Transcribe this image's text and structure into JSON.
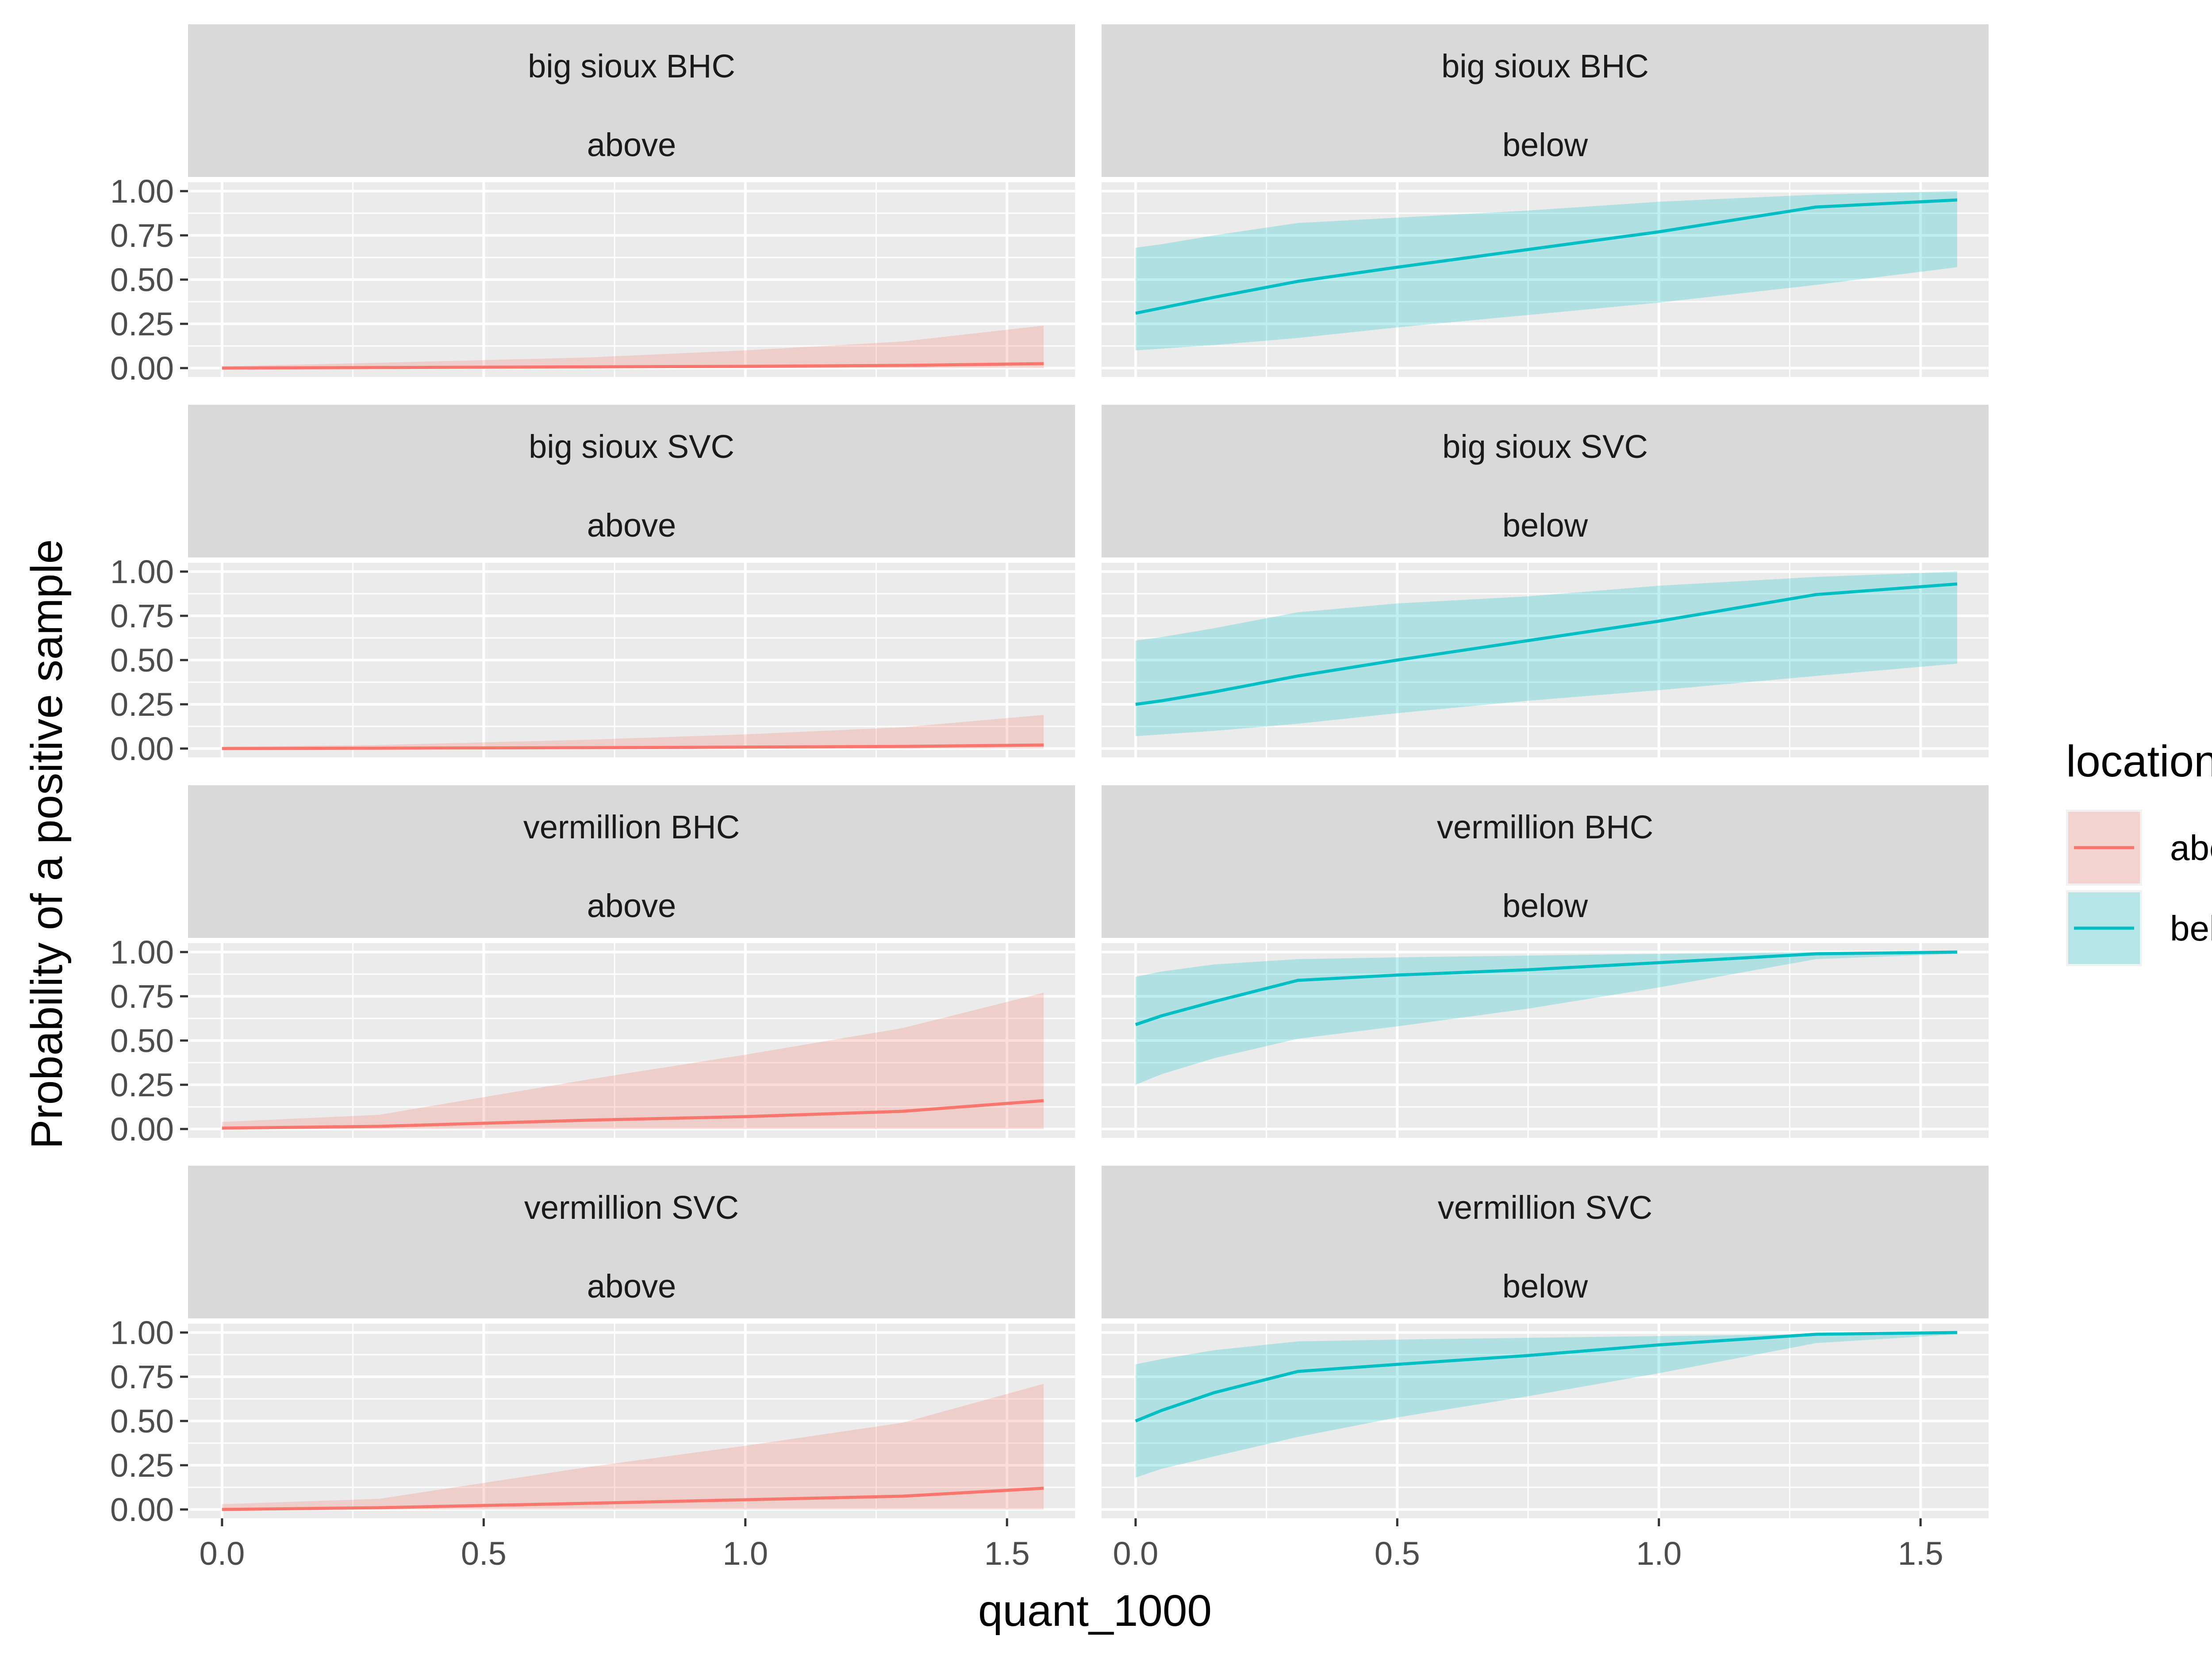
{
  "chart_data": {
    "type": "line",
    "xlabel": "quant_1000",
    "ylabel": "Probability of a positive sample",
    "xlim": [
      -0.065,
      1.63
    ],
    "ylim": [
      -0.05,
      1.05
    ],
    "x_ticks": [
      0.0,
      0.5,
      1.0,
      1.5
    ],
    "x_tick_labels": [
      "0.0",
      "0.5",
      "1.0",
      "1.5"
    ],
    "y_ticks": [
      0.0,
      0.25,
      0.5,
      0.75,
      1.0
    ],
    "y_tick_labels": [
      "0.00",
      "0.25",
      "0.50",
      "0.75",
      "1.00"
    ],
    "grid": true,
    "legend": {
      "title": "location",
      "position": "right",
      "entries": [
        {
          "name": "above",
          "line_color": "#F8766D",
          "fill_color": "#F8766D"
        },
        {
          "name": "below",
          "line_color": "#00BFC4",
          "fill_color": "#00BFC4"
        }
      ]
    },
    "facets": [
      {
        "strip": [
          "big sioux BHC",
          "above"
        ],
        "location": "above",
        "x": [
          0.0,
          0.3,
          0.7,
          1.0,
          1.3,
          1.57
        ],
        "y": [
          0.0,
          0.003,
          0.007,
          0.01,
          0.015,
          0.025
        ],
        "ymin": [
          0.0,
          0.0,
          0.0,
          0.0,
          0.0,
          0.0
        ],
        "ymax": [
          0.01,
          0.03,
          0.06,
          0.1,
          0.15,
          0.24
        ]
      },
      {
        "strip": [
          "big sioux BHC",
          "below"
        ],
        "location": "below",
        "x": [
          0.0,
          0.05,
          0.15,
          0.31,
          0.5,
          0.75,
          1.0,
          1.3,
          1.57
        ],
        "y": [
          0.31,
          0.34,
          0.4,
          0.49,
          0.57,
          0.67,
          0.77,
          0.91,
          0.95
        ],
        "ymin": [
          0.1,
          0.11,
          0.13,
          0.17,
          0.23,
          0.3,
          0.37,
          0.47,
          0.57
        ],
        "ymax": [
          0.68,
          0.7,
          0.75,
          0.82,
          0.85,
          0.89,
          0.94,
          0.98,
          1.0
        ]
      },
      {
        "strip": [
          "big sioux SVC",
          "above"
        ],
        "location": "above",
        "x": [
          0.0,
          0.3,
          0.7,
          1.0,
          1.3,
          1.57
        ],
        "y": [
          0.0,
          0.002,
          0.005,
          0.008,
          0.012,
          0.02
        ],
        "ymin": [
          0.0,
          0.0,
          0.0,
          0.0,
          0.0,
          0.0
        ],
        "ymax": [
          0.01,
          0.02,
          0.05,
          0.08,
          0.12,
          0.19
        ]
      },
      {
        "strip": [
          "big sioux SVC",
          "below"
        ],
        "location": "below",
        "x": [
          0.0,
          0.05,
          0.15,
          0.31,
          0.5,
          0.75,
          1.0,
          1.3,
          1.57
        ],
        "y": [
          0.25,
          0.27,
          0.32,
          0.41,
          0.5,
          0.61,
          0.72,
          0.87,
          0.93
        ],
        "ymin": [
          0.07,
          0.08,
          0.1,
          0.14,
          0.2,
          0.27,
          0.33,
          0.41,
          0.48
        ],
        "ymax": [
          0.61,
          0.63,
          0.68,
          0.77,
          0.82,
          0.86,
          0.92,
          0.97,
          1.0
        ]
      },
      {
        "strip": [
          "vermillion BHC",
          "above"
        ],
        "location": "above",
        "x": [
          0.0,
          0.3,
          0.7,
          1.0,
          1.3,
          1.57
        ],
        "y": [
          0.005,
          0.015,
          0.05,
          0.07,
          0.1,
          0.16
        ],
        "ymin": [
          0.0,
          0.0,
          0.0,
          0.0,
          0.0,
          0.0
        ],
        "ymax": [
          0.04,
          0.08,
          0.28,
          0.42,
          0.57,
          0.77
        ]
      },
      {
        "strip": [
          "vermillion BHC",
          "below"
        ],
        "location": "below",
        "x": [
          0.0,
          0.05,
          0.15,
          0.31,
          0.5,
          0.75,
          1.0,
          1.3,
          1.57
        ],
        "y": [
          0.59,
          0.64,
          0.72,
          0.84,
          0.87,
          0.9,
          0.94,
          0.99,
          1.0
        ],
        "ymin": [
          0.25,
          0.31,
          0.4,
          0.51,
          0.58,
          0.68,
          0.8,
          0.96,
          0.99
        ],
        "ymax": [
          0.86,
          0.89,
          0.93,
          0.96,
          0.97,
          0.98,
          0.99,
          1.0,
          1.0
        ]
      },
      {
        "strip": [
          "vermillion SVC",
          "above"
        ],
        "location": "above",
        "x": [
          0.0,
          0.3,
          0.7,
          1.0,
          1.3,
          1.57
        ],
        "y": [
          0.0,
          0.01,
          0.035,
          0.055,
          0.075,
          0.12
        ],
        "ymin": [
          0.0,
          0.0,
          0.0,
          0.0,
          0.0,
          0.0
        ],
        "ymax": [
          0.03,
          0.06,
          0.24,
          0.36,
          0.49,
          0.71
        ]
      },
      {
        "strip": [
          "vermillion SVC",
          "below"
        ],
        "location": "below",
        "x": [
          0.0,
          0.05,
          0.15,
          0.31,
          0.5,
          0.75,
          1.0,
          1.3,
          1.57
        ],
        "y": [
          0.5,
          0.56,
          0.66,
          0.78,
          0.82,
          0.87,
          0.93,
          0.99,
          1.0
        ],
        "ymin": [
          0.18,
          0.23,
          0.3,
          0.41,
          0.52,
          0.64,
          0.77,
          0.94,
          0.99
        ],
        "ymax": [
          0.82,
          0.85,
          0.9,
          0.95,
          0.96,
          0.97,
          0.98,
          0.99,
          1.0
        ]
      }
    ]
  }
}
